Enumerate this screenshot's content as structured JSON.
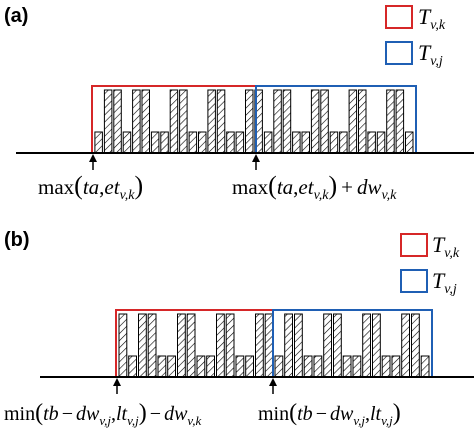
{
  "colors": {
    "window_k": "#d62728",
    "window_j": "#1f5fb4",
    "axis": "#000000",
    "hatch": "#000000"
  },
  "panels": [
    {
      "tag": "(a)",
      "legend": [
        {
          "symbol": "T",
          "sub": "v,k"
        },
        {
          "symbol": "T",
          "sub": "v,j"
        }
      ],
      "bar_levels": [
        1,
        3,
        3,
        1,
        3,
        3,
        1,
        1,
        3,
        3,
        1,
        1,
        3,
        3,
        1,
        1,
        3,
        3,
        1,
        3,
        3,
        1,
        1,
        3,
        3,
        1,
        1,
        3,
        3,
        1,
        1,
        3,
        3,
        1
      ],
      "markers": [
        {
          "fn": "max",
          "open": "(",
          "a": "ta",
          "comma": ",",
          "b": "et",
          "b_sub": "v,k",
          "close": ")",
          "tail": ""
        },
        {
          "fn": "max",
          "open": "(",
          "a": "ta",
          "comma": ",",
          "b": "et",
          "b_sub": "v,k",
          "close": ")",
          "tail_op": "+",
          "tail": "dw",
          "tail_sub": "v,k"
        }
      ]
    },
    {
      "tag": "(b)",
      "legend": [
        {
          "symbol": "T",
          "sub": "v,k"
        },
        {
          "symbol": "T",
          "sub": "v,j"
        }
      ],
      "bar_levels": [
        3,
        1,
        3,
        3,
        1,
        1,
        3,
        3,
        1,
        1,
        3,
        3,
        1,
        1,
        3,
        3,
        1,
        3,
        3,
        1,
        1,
        3,
        3,
        1,
        1,
        3,
        3,
        1,
        1,
        3,
        3,
        1
      ],
      "markers": [
        {
          "fn": "min",
          "open": "(",
          "a": "tb",
          "op": "−",
          "a2": "dw",
          "a2_sub": "v,j",
          "comma": ",",
          "b": "lt",
          "b_sub": "v,j",
          "close": ")",
          "tail_op": "−",
          "tail": "dw",
          "tail_sub": "v,k"
        },
        {
          "fn": "min",
          "open": "(",
          "a": "tb",
          "op": "−",
          "a2": "dw",
          "a2_sub": "v,j",
          "comma": ",",
          "b": "lt",
          "b_sub": "v,j",
          "close": ")"
        }
      ]
    }
  ]
}
